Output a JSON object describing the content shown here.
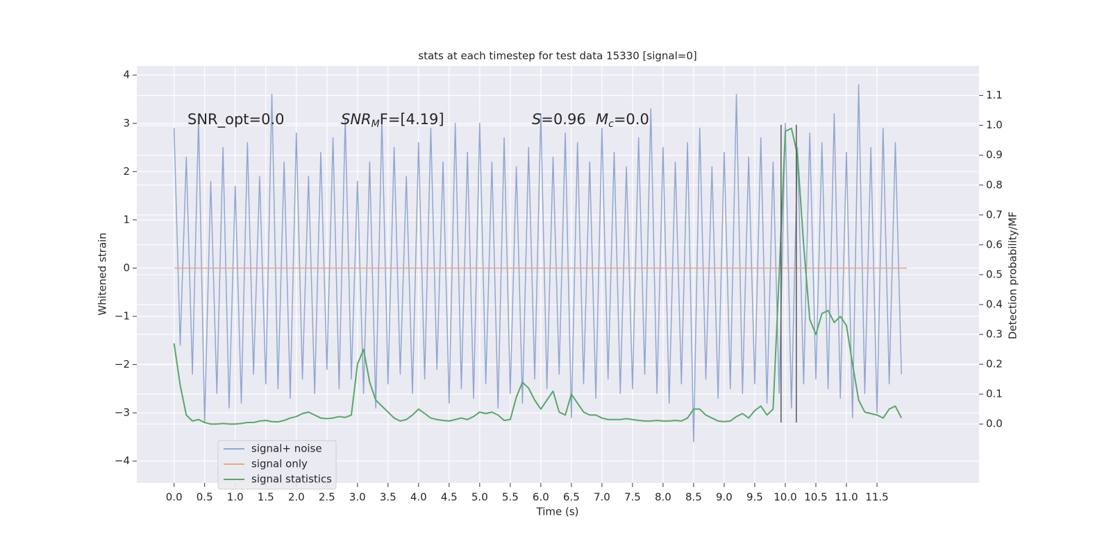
{
  "chart_data": {
    "type": "line",
    "title": "stats at each timestep for test data 15330 [signal=0]",
    "xlabel": "Time (s)",
    "ylabel": "Whitened strain",
    "y2label": "Detection probability/MF",
    "annotations": [
      {
        "text": "SNR_opt=0.0"
      },
      {
        "base": "SNR",
        "sub": "M",
        "rest": "F=[4.19]"
      },
      {
        "base": "S",
        "rest": "=0.96"
      },
      {
        "base": "M",
        "sub": "c",
        "rest": "=0.0"
      }
    ],
    "grid": true,
    "legend": "lower left",
    "xlim": [
      -0.61,
      13.17
    ],
    "ylim": [
      -4.45,
      4.19
    ],
    "y2lim": [
      -0.197,
      1.199
    ],
    "xticks": [
      {
        "value": 0,
        "label": "0.0"
      },
      {
        "value": 0.5,
        "label": "0.5"
      },
      {
        "value": 1,
        "label": "1.0"
      },
      {
        "value": 1.5,
        "label": "1.5"
      },
      {
        "value": 2,
        "label": "2.0"
      },
      {
        "value": 2.5,
        "label": "2.5"
      },
      {
        "value": 3,
        "label": "3.0"
      },
      {
        "value": 3.5,
        "label": "3.5"
      },
      {
        "value": 4,
        "label": "4.0"
      },
      {
        "value": 4.5,
        "label": "4.5"
      },
      {
        "value": 5,
        "label": "5.0"
      },
      {
        "value": 5.5,
        "label": "5.5"
      },
      {
        "value": 6,
        "label": "6.0"
      },
      {
        "value": 6.5,
        "label": "6.5"
      },
      {
        "value": 7,
        "label": "7.0"
      },
      {
        "value": 7.5,
        "label": "7.5"
      },
      {
        "value": 8,
        "label": "8.0"
      },
      {
        "value": 8.5,
        "label": "8.5"
      },
      {
        "value": 9,
        "label": "9.0"
      },
      {
        "value": 9.5,
        "label": "9.5"
      },
      {
        "value": 10,
        "label": "10.0"
      },
      {
        "value": 10.5,
        "label": "10.5"
      },
      {
        "value": 11,
        "label": "11.0"
      },
      {
        "value": 11.5,
        "label": "11.5"
      }
    ],
    "yticks": [
      {
        "value": -4,
        "label": "−4"
      },
      {
        "value": -3,
        "label": "−3"
      },
      {
        "value": -2,
        "label": "−2"
      },
      {
        "value": -1,
        "label": "−1"
      },
      0,
      1,
      2,
      3,
      4
    ],
    "y2ticks": [
      {
        "value": 0,
        "label": "0.0"
      },
      {
        "value": 0.1,
        "label": "0.1"
      },
      {
        "value": 0.2,
        "label": "0.2"
      },
      {
        "value": 0.3,
        "label": "0.3"
      },
      {
        "value": 0.4,
        "label": "0.4"
      },
      {
        "value": 0.5,
        "label": "0.5"
      },
      {
        "value": 0.6,
        "label": "0.6"
      },
      {
        "value": 0.7,
        "label": "0.7"
      },
      {
        "value": 0.8,
        "label": "0.8"
      },
      {
        "value": 0.9,
        "label": "0.9"
      },
      {
        "value": 1,
        "label": "1.0"
      },
      {
        "value": 1.1,
        "label": "1.1"
      }
    ],
    "x": [
      0,
      0.1,
      0.2,
      0.3,
      0.4,
      0.5,
      0.6,
      0.7,
      0.8,
      0.9,
      1,
      1.1,
      1.2,
      1.3,
      1.4,
      1.5,
      1.6,
      1.7,
      1.8,
      1.9,
      2,
      2.1,
      2.2,
      2.3,
      2.4,
      2.5,
      2.6,
      2.7,
      2.8,
      2.9,
      3,
      3.1,
      3.2,
      3.3,
      3.4,
      3.5,
      3.6,
      3.7,
      3.8,
      3.9,
      4,
      4.1,
      4.2,
      4.3,
      4.4,
      4.5,
      4.6,
      4.7,
      4.8,
      4.9,
      5,
      5.1,
      5.2,
      5.3,
      5.4,
      5.5,
      5.6,
      5.7,
      5.8,
      5.9,
      6,
      6.1,
      6.2,
      6.3,
      6.4,
      6.5,
      6.6,
      6.7,
      6.8,
      6.9,
      7,
      7.1,
      7.2,
      7.3,
      7.4,
      7.5,
      7.6,
      7.7,
      7.8,
      7.9,
      8,
      8.1,
      8.2,
      8.3,
      8.4,
      8.5,
      8.6,
      8.7,
      8.8,
      8.9,
      9,
      9.1,
      9.2,
      9.3,
      9.4,
      9.5,
      9.6,
      9.7,
      9.8,
      9.9,
      10,
      10.1,
      10.2,
      10.3,
      10.4,
      10.5,
      10.6,
      10.7,
      10.8,
      10.9,
      11,
      11.1,
      11.2,
      11.3,
      11.4,
      11.5,
      11.6,
      11.7,
      11.8,
      11.9
    ],
    "series": [
      {
        "name": "signal+ noise",
        "color": "#92a6d0",
        "values": [
          2.9,
          -1.6,
          2.3,
          -2.2,
          3.1,
          -3.2,
          1.8,
          -2.6,
          2.5,
          -2.9,
          1.7,
          -2.8,
          2.6,
          -2.2,
          1.9,
          -2.4,
          3.6,
          -2.5,
          2.2,
          -2.7,
          2.8,
          -2.3,
          1.9,
          -2.6,
          2.4,
          -2.1,
          2.7,
          -2.5,
          3.1,
          -2.3,
          1.8,
          -2.6,
          2.2,
          -2.9,
          3.1,
          -2.4,
          2.5,
          -2.2,
          1.9,
          -2.6,
          2.6,
          -2.3,
          2.9,
          -2.1,
          2.2,
          -2.8,
          3.0,
          -2.5,
          2.4,
          -2.7,
          3.0,
          -2.4,
          2.2,
          -2.9,
          2.7,
          -2.6,
          2.1,
          -2.8,
          2.5,
          -2.3,
          3.2,
          -2.5,
          2.3,
          -2.2,
          2.8,
          -3.1,
          2.6,
          -2.4,
          2.2,
          -2.7,
          2.9,
          -2.3,
          2.4,
          -2.6,
          2.1,
          -2.5,
          2.7,
          -2.2,
          3.3,
          -2.6,
          2.5,
          -2.8,
          2.2,
          -2.4,
          2.6,
          -3.6,
          2.9,
          -2.3,
          2.1,
          -2.7,
          2.4,
          -2.5,
          3.6,
          -2.6,
          2.3,
          -2.4,
          2.7,
          -2.8,
          2.2,
          -2.6,
          3.0,
          -2.9,
          2.5,
          -2.4,
          2.8,
          -2.3,
          2.6,
          -2.5,
          3.2,
          -2.7,
          2.4,
          -3.1,
          3.8,
          -2.6,
          2.5,
          -3.0,
          2.9,
          -2.4,
          2.6,
          -2.2
        ]
      },
      {
        "name": "signal only",
        "color": "#e7a88b",
        "x": [
          0,
          11.99
        ],
        "values": [
          0,
          0
        ]
      },
      {
        "name": "signal statistics",
        "color": "#55a868",
        "axis": "y2",
        "values": [
          0.27,
          0.13,
          0.03,
          0.01,
          0.015,
          0.005,
          0.0,
          0.0,
          0.002,
          0.0,
          0.0,
          0.002,
          0.005,
          0.005,
          0.01,
          0.012,
          0.008,
          0.007,
          0.012,
          0.02,
          0.025,
          0.035,
          0.04,
          0.03,
          0.02,
          0.018,
          0.02,
          0.025,
          0.022,
          0.03,
          0.2,
          0.25,
          0.14,
          0.08,
          0.06,
          0.04,
          0.02,
          0.01,
          0.015,
          0.03,
          0.05,
          0.035,
          0.02,
          0.015,
          0.012,
          0.01,
          0.015,
          0.02,
          0.015,
          0.025,
          0.04,
          0.035,
          0.04,
          0.03,
          0.012,
          0.015,
          0.09,
          0.14,
          0.12,
          0.08,
          0.05,
          0.08,
          0.11,
          0.04,
          0.03,
          0.1,
          0.07,
          0.04,
          0.03,
          0.03,
          0.02,
          0.015,
          0.015,
          0.015,
          0.018,
          0.015,
          0.012,
          0.01,
          0.01,
          0.012,
          0.01,
          0.01,
          0.012,
          0.01,
          0.02,
          0.05,
          0.05,
          0.03,
          0.02,
          0.01,
          0.008,
          0.01,
          0.025,
          0.035,
          0.02,
          0.045,
          0.06,
          0.03,
          0.05,
          0.5,
          0.98,
          0.99,
          0.9,
          0.6,
          0.35,
          0.3,
          0.37,
          0.38,
          0.34,
          0.36,
          0.33,
          0.2,
          0.08,
          0.04,
          0.035,
          0.03,
          0.02,
          0.05,
          0.06,
          0.02
        ]
      }
    ],
    "vlines": {
      "x": [
        9.93,
        10.18
      ],
      "ymin": -3.2,
      "ymax": 2.97,
      "color": "#555555"
    }
  }
}
